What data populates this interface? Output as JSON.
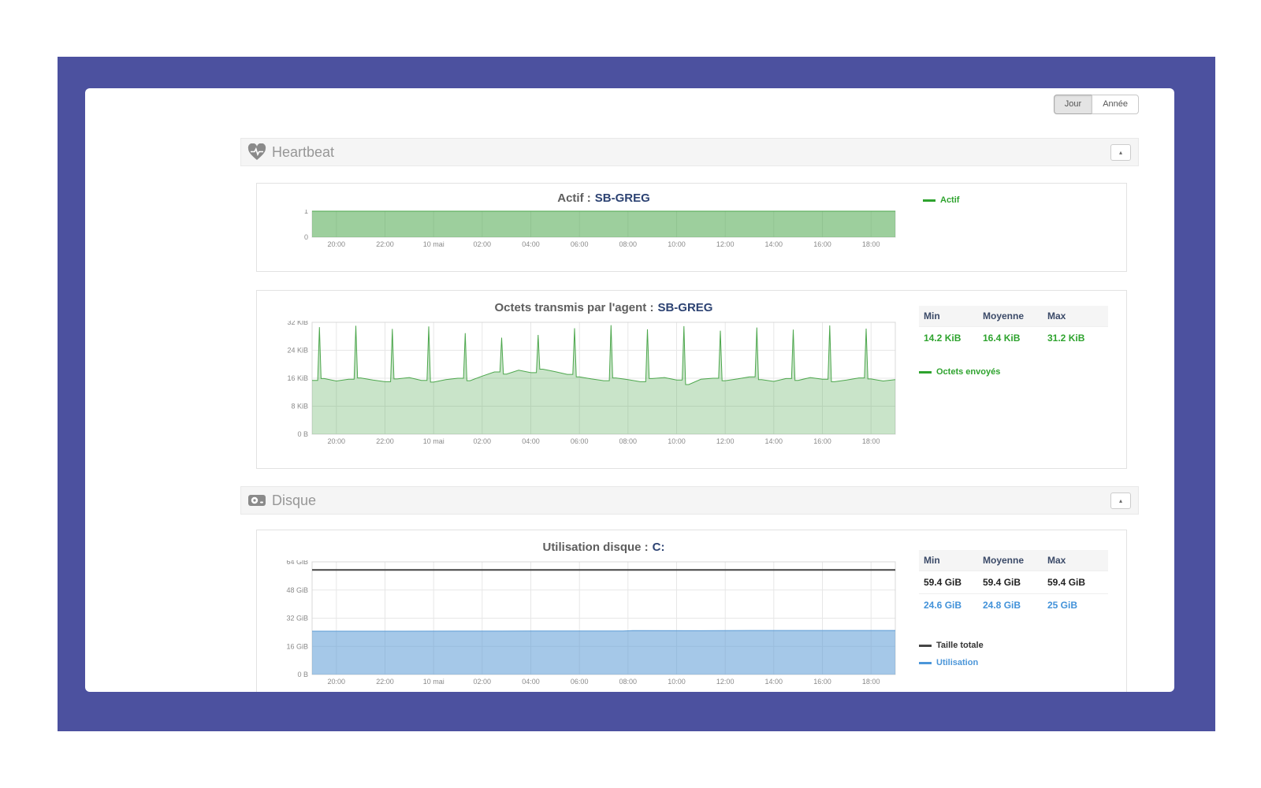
{
  "frame": {
    "background_color": "#4c519f"
  },
  "toolbar": {
    "day_label": "Jour",
    "year_label": "Année"
  },
  "sections": [
    {
      "title": "Heartbeat",
      "icon": "heartbeat-icon",
      "collapse_glyph": "▴"
    },
    {
      "title": "Disque",
      "icon": "hdd-icon",
      "collapse_glyph": "▴"
    }
  ],
  "chart_data": [
    {
      "type": "area",
      "title_prefix": "Actif :",
      "title_value": "SB-GREG",
      "legend": [
        {
          "label": "Actif",
          "color": "#2ea32e"
        }
      ],
      "ylim": [
        0,
        1
      ],
      "x_hours": [
        0,
        24
      ],
      "y_ticks": [
        {
          "label": "1",
          "value": 1
        },
        {
          "label": "0",
          "value": 0
        }
      ],
      "x_ticks": [
        {
          "label": "20:00",
          "hour": 1
        },
        {
          "label": "22:00",
          "hour": 3
        },
        {
          "label": "10 mai",
          "hour": 5
        },
        {
          "label": "02:00",
          "hour": 7
        },
        {
          "label": "04:00",
          "hour": 9
        },
        {
          "label": "06:00",
          "hour": 11
        },
        {
          "label": "08:00",
          "hour": 13
        },
        {
          "label": "10:00",
          "hour": 15
        },
        {
          "label": "12:00",
          "hour": 17
        },
        {
          "label": "14:00",
          "hour": 19
        },
        {
          "label": "16:00",
          "hour": 21
        },
        {
          "label": "18:00",
          "hour": 23
        }
      ],
      "series": [
        {
          "name": "Actif",
          "color": "#4da74d",
          "fill": "rgba(77,167,77,0.55)",
          "line_width": 1,
          "points": [
            [
              0,
              1
            ],
            [
              24,
              1
            ]
          ]
        }
      ]
    },
    {
      "type": "area",
      "title_prefix": "Octets transmis par l'agent :",
      "title_value": "SB-GREG",
      "legend": [
        {
          "label": "Octets envoyés",
          "color": "#2ea32e"
        }
      ],
      "stats": {
        "headers": [
          "Min",
          "Moyenne",
          "Max"
        ],
        "rows": [
          {
            "values": [
              "14.2 KiB",
              "16.4 KiB",
              "31.2 KiB"
            ],
            "color": "#2ea32e"
          }
        ]
      },
      "ylim": [
        0,
        32
      ],
      "x_hours": [
        0,
        24
      ],
      "y_ticks": [
        {
          "label": "32 KiB",
          "value": 32
        },
        {
          "label": "24 KiB",
          "value": 24
        },
        {
          "label": "16 KiB",
          "value": 16
        },
        {
          "label": "8 KiB",
          "value": 8
        },
        {
          "label": "0 B",
          "value": 0
        }
      ],
      "x_ticks": [
        {
          "label": "20:00",
          "hour": 1
        },
        {
          "label": "22:00",
          "hour": 3
        },
        {
          "label": "10 mai",
          "hour": 5
        },
        {
          "label": "02:00",
          "hour": 7
        },
        {
          "label": "04:00",
          "hour": 9
        },
        {
          "label": "06:00",
          "hour": 11
        },
        {
          "label": "08:00",
          "hour": 13
        },
        {
          "label": "10:00",
          "hour": 15
        },
        {
          "label": "12:00",
          "hour": 17
        },
        {
          "label": "14:00",
          "hour": 19
        },
        {
          "label": "16:00",
          "hour": 21
        },
        {
          "label": "18:00",
          "hour": 23
        }
      ],
      "series": [
        {
          "name": "Octets envoyés",
          "color": "#4da74d",
          "fill": "rgba(77,167,77,0.30)",
          "line_width": 1,
          "baseline": {
            "start": 0,
            "step": 0.5,
            "values": [
              15.4,
              15.9,
              15.2,
              15.7,
              16.1,
              15.5,
              15.0,
              15.8,
              16.2,
              15.4,
              14.9,
              15.6,
              16.0,
              15.3,
              16.6,
              17.8,
              17.2,
              18.3,
              17.6,
              18.6,
              17.9,
              17.1,
              16.4,
              15.8,
              15.3,
              16.1,
              15.6,
              15.0,
              15.9,
              16.2,
              15.5,
              14.2,
              15.7,
              16.0,
              15.3,
              15.8,
              16.4,
              15.6,
              15.1,
              15.9,
              15.4,
              16.2,
              15.7,
              15.0,
              15.5,
              16.1,
              15.8,
              15.2,
              15.6
            ]
          },
          "spikes": [
            [
              0.3,
              30.6
            ],
            [
              1.8,
              31.0
            ],
            [
              3.3,
              30.1
            ],
            [
              4.8,
              30.8
            ],
            [
              6.3,
              28.9
            ],
            [
              7.8,
              27.6
            ],
            [
              9.3,
              28.4
            ],
            [
              10.8,
              30.3
            ],
            [
              12.3,
              31.2
            ],
            [
              13.8,
              30.0
            ],
            [
              15.3,
              30.9
            ],
            [
              16.8,
              29.6
            ],
            [
              18.3,
              30.5
            ],
            [
              19.8,
              29.9
            ],
            [
              21.3,
              31.1
            ],
            [
              22.8,
              30.2
            ]
          ],
          "spike_half_width_hours": 0.07
        }
      ]
    },
    {
      "type": "area",
      "title_prefix": "Utilisation disque :",
      "title_value": "C:",
      "legend": [
        {
          "label": "Taille totale",
          "color": "#454545"
        },
        {
          "label": "Utilisation",
          "color": "#4b96d9"
        }
      ],
      "stats": {
        "headers": [
          "Min",
          "Moyenne",
          "Max"
        ],
        "rows": [
          {
            "values": [
              "59.4 GiB",
              "59.4 GiB",
              "59.4 GiB"
            ],
            "color": "#222222"
          },
          {
            "values": [
              "24.6 GiB",
              "24.8 GiB",
              "25 GiB"
            ],
            "color": "#4292d9"
          }
        ]
      },
      "ylim": [
        0,
        64
      ],
      "x_hours": [
        0,
        24
      ],
      "y_ticks": [
        {
          "label": "64 GiB",
          "value": 64
        },
        {
          "label": "48 GiB",
          "value": 48
        },
        {
          "label": "32 GiB",
          "value": 32
        },
        {
          "label": "16 GiB",
          "value": 16
        },
        {
          "label": "0 B",
          "value": 0
        }
      ],
      "x_ticks": [
        {
          "label": "20:00",
          "hour": 1
        },
        {
          "label": "22:00",
          "hour": 3
        },
        {
          "label": "10 mai",
          "hour": 5
        },
        {
          "label": "02:00",
          "hour": 7
        },
        {
          "label": "04:00",
          "hour": 9
        },
        {
          "label": "06:00",
          "hour": 11
        },
        {
          "label": "08:00",
          "hour": 13
        },
        {
          "label": "10:00",
          "hour": 15
        },
        {
          "label": "12:00",
          "hour": 17
        },
        {
          "label": "14:00",
          "hour": 19
        },
        {
          "label": "16:00",
          "hour": 21
        },
        {
          "label": "18:00",
          "hour": 23
        }
      ],
      "series": [
        {
          "name": "Taille totale",
          "color": "#454545",
          "fill": "none",
          "line_width": 2,
          "points": [
            [
              0,
              59.4
            ],
            [
              24,
              59.4
            ]
          ]
        },
        {
          "name": "Utilisation",
          "color": "#5b9bd5",
          "fill": "rgba(91,155,213,0.55)",
          "line_width": 1,
          "points": [
            [
              0,
              24.6
            ],
            [
              3,
              24.6
            ],
            [
              6,
              24.65
            ],
            [
              9,
              24.7
            ],
            [
              12,
              24.75
            ],
            [
              12.8,
              24.75
            ],
            [
              13.2,
              24.95
            ],
            [
              16,
              24.9
            ],
            [
              18,
              25
            ],
            [
              24,
              25
            ]
          ]
        }
      ]
    }
  ]
}
